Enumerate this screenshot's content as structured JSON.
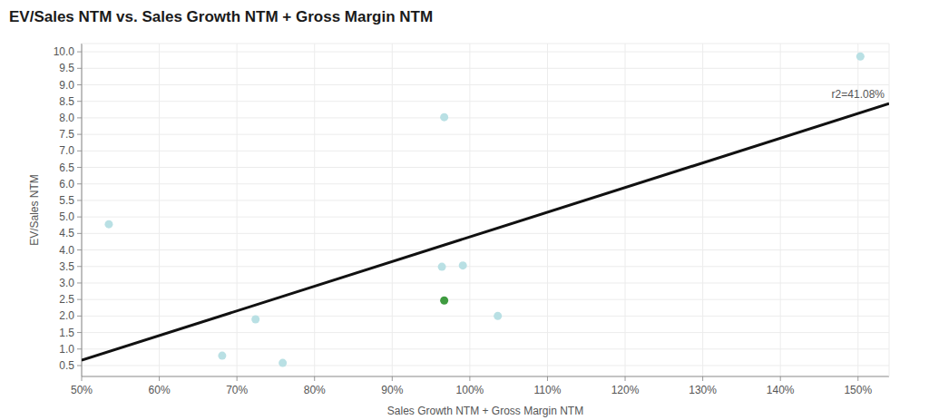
{
  "chart_data": {
    "type": "scatter",
    "title": "EV/Sales NTM vs. Sales Growth NTM + Gross Margin NTM",
    "x_label": "Sales Growth NTM + Gross Margin NTM",
    "y_label": "EV/Sales NTM",
    "x": [
      53.5,
      68.1,
      72.4,
      75.9,
      96.4,
      96.7,
      96.7,
      99.1,
      103.6,
      150.3
    ],
    "values": [
      4.78,
      0.8,
      1.9,
      0.58,
      3.49,
      8.02,
      2.47,
      3.53,
      2.0,
      9.86
    ],
    "colors": [
      "#b9e0e4",
      "#b9e0e4",
      "#b9e0e4",
      "#b9e0e4",
      "#b9e0e4",
      "#b9e0e4",
      "#3f9b40",
      "#b9e0e4",
      "#b9e0e4",
      "#b9e0e4"
    ],
    "marker": "circle",
    "trend_line": {
      "x": [
        50,
        154
      ],
      "values": [
        0.66,
        8.43
      ]
    },
    "annotation": "r2=41.08%",
    "xlim": [
      50,
      154
    ],
    "ylim": [
      0.17,
      10.25
    ],
    "xticks": [
      {
        "value": 50,
        "label": "50%"
      },
      {
        "value": 60,
        "label": "60%"
      },
      {
        "value": 70,
        "label": "70%"
      },
      {
        "value": 80,
        "label": "80%"
      },
      {
        "value": 90,
        "label": "90%"
      },
      {
        "value": 100,
        "label": "100%"
      },
      {
        "value": 110,
        "label": "110%"
      },
      {
        "value": 120,
        "label": "120%"
      },
      {
        "value": 130,
        "label": "130%"
      },
      {
        "value": 140,
        "label": "140%"
      },
      {
        "value": 150,
        "label": "150%"
      }
    ],
    "yticks": [
      0.5,
      {
        "value": 1,
        "label": "1.0"
      },
      1.5,
      {
        "value": 2,
        "label": "2.0"
      },
      2.5,
      {
        "value": 3,
        "label": "3.0"
      },
      3.5,
      {
        "value": 4,
        "label": "4.0"
      },
      4.5,
      {
        "value": 5,
        "label": "5.0"
      },
      5.5,
      {
        "value": 6,
        "label": "6.0"
      },
      6.5,
      {
        "value": 7,
        "label": "7.0"
      },
      7.5,
      {
        "value": 8,
        "label": "8.0"
      },
      8.5,
      {
        "value": 9,
        "label": "9.0"
      },
      9.5,
      {
        "value": 10,
        "label": "10.0"
      }
    ],
    "grid": true
  }
}
